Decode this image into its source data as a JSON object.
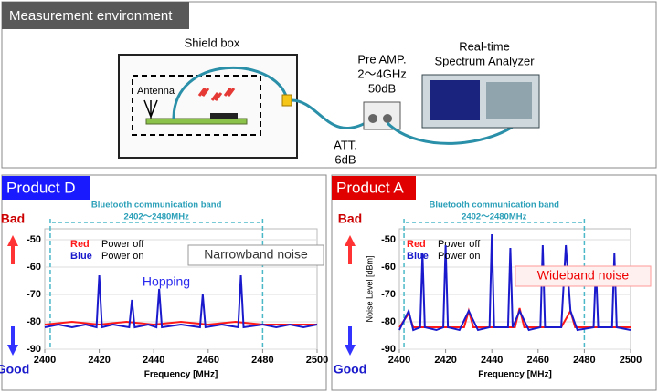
{
  "diagram": {
    "title": "Measurement environment",
    "shield_box": "Shield box",
    "antenna": "Antenna",
    "amp": [
      "Pre AMP.",
      "2～4GHz",
      "50dB"
    ],
    "analyzer": [
      "Real-time",
      "Spectrum Analyzer"
    ],
    "att": [
      "ATT.",
      "6dB"
    ]
  },
  "chart_data": [
    {
      "type": "line",
      "title": "Product D",
      "xlabel": "Frequency [MHz]",
      "band_label": "Bluetooth communication band",
      "band_range": "2402～2480MHz",
      "band": [
        2402,
        2480
      ],
      "bad": "Bad",
      "good": "Good",
      "annotations": [
        "Narrowband noise",
        "Hopping"
      ],
      "xlim": [
        2400,
        2500
      ],
      "xticks": [
        2400,
        2420,
        2440,
        2460,
        2480,
        2500
      ],
      "ylim": [
        -90,
        -46
      ],
      "yticks": [
        -50,
        -60,
        -70,
        -80,
        -90
      ],
      "series": [
        {
          "name": "Power off",
          "key": "Red",
          "color": "#ff1a1a",
          "x": [
            2400,
            2410,
            2420,
            2430,
            2440,
            2450,
            2460,
            2470,
            2480,
            2490,
            2500
          ],
          "values": [
            -81,
            -80,
            -81,
            -80,
            -81,
            -80,
            -81,
            -80,
            -81,
            -81,
            -81
          ]
        },
        {
          "name": "Power on",
          "key": "Blue",
          "color": "#1a1acc",
          "x": [
            2400,
            2405,
            2410,
            2415,
            2419,
            2420,
            2421,
            2425,
            2431,
            2432,
            2433,
            2438,
            2441,
            2442,
            2443,
            2450,
            2457,
            2458,
            2459,
            2465,
            2471,
            2472,
            2473,
            2480,
            2485,
            2490,
            2495,
            2500
          ],
          "values": [
            -82,
            -81,
            -82,
            -81,
            -82,
            -63,
            -82,
            -81,
            -82,
            -72,
            -82,
            -81,
            -82,
            -68,
            -82,
            -81,
            -82,
            -70,
            -82,
            -81,
            -82,
            -63,
            -82,
            -81,
            -82,
            -81,
            -82,
            -81
          ]
        }
      ]
    },
    {
      "type": "line",
      "title": "Product A",
      "xlabel": "Frequency [MHz]",
      "ylabel": "Noise Level [dBm]",
      "band_label": "Bluetooth communication band",
      "band_range": "2402～2480MHz",
      "band": [
        2402,
        2480
      ],
      "bad": "Bad",
      "good": "Good",
      "annotations": [
        "Wideband noise"
      ],
      "xlim": [
        2400,
        2500
      ],
      "xticks": [
        2400,
        2420,
        2440,
        2460,
        2480,
        2500
      ],
      "ylim": [
        -90,
        -46
      ],
      "yticks": [
        -50,
        -60,
        -70,
        -80,
        -90
      ],
      "series": [
        {
          "name": "Power off",
          "key": "Red",
          "color": "#ff1a1a",
          "x": [
            2400,
            2404,
            2406,
            2410,
            2420,
            2428,
            2430,
            2432,
            2440,
            2450,
            2452,
            2454,
            2460,
            2470,
            2474,
            2476,
            2480,
            2490,
            2500
          ],
          "values": [
            -82,
            -77,
            -82,
            -82,
            -82,
            -82,
            -76,
            -82,
            -82,
            -82,
            -75,
            -82,
            -82,
            -82,
            -76,
            -82,
            -82,
            -82,
            -82
          ]
        },
        {
          "name": "Power on",
          "key": "Blue",
          "color": "#1a1acc",
          "x": [
            2400,
            2404,
            2406,
            2409,
            2410,
            2411,
            2416,
            2419,
            2420,
            2421,
            2426,
            2430,
            2434,
            2439,
            2440,
            2441,
            2447,
            2448,
            2449,
            2452,
            2456,
            2461,
            2462,
            2463,
            2470,
            2472,
            2474,
            2477,
            2484,
            2485,
            2486,
            2492,
            2493,
            2494,
            2500
          ],
          "values": [
            -83,
            -76,
            -83,
            -82,
            -55,
            -82,
            -83,
            -82,
            -52,
            -82,
            -83,
            -76,
            -83,
            -82,
            -48,
            -82,
            -82,
            -53,
            -82,
            -76,
            -83,
            -82,
            -52,
            -82,
            -82,
            -52,
            -76,
            -83,
            -82,
            -60,
            -82,
            -82,
            -55,
            -82,
            -83
          ]
        }
      ]
    }
  ]
}
